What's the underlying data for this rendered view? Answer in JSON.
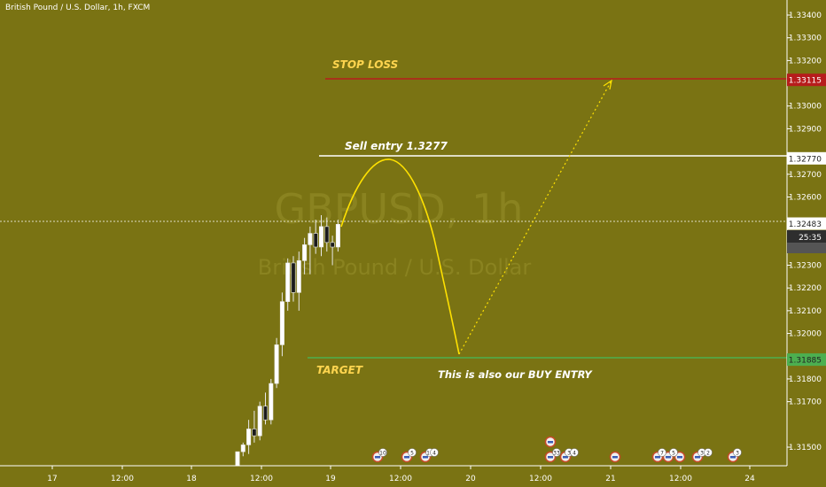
{
  "header": {
    "title": "British Pound / U.S. Dollar, 1h, FXCM"
  },
  "watermark": {
    "symbol": "GBPUSD, 1h",
    "name": "British Pound / U.S. Dollar"
  },
  "colors": {
    "background": "#7a7313",
    "candle_up": "#ffffff",
    "candle_down": "#1a1a1a",
    "stop_loss": "#b71c1c",
    "entry": "#ffffff",
    "target": "#4caf50",
    "annotation_text": "#ffd54f",
    "arc": "#ffe100",
    "last_price_label": "#555555"
  },
  "chart_data": {
    "type": "candlestick",
    "title": "British Pound / U.S. Dollar, 1h, FXCM",
    "x_ticks": [
      "17",
      "12:00",
      "18",
      "12:00",
      "19",
      "12:00",
      "20",
      "12:00",
      "21",
      "12:00",
      "24"
    ],
    "y_ticks": [
      "1.33400",
      "1.33300",
      "1.33200",
      "1.33000",
      "1.32900",
      "1.32700",
      "1.32600",
      "1.32300",
      "1.32200",
      "1.32100",
      "1.32000",
      "1.31800",
      "1.31700",
      "1.31500"
    ],
    "ylim": [
      1.3141,
      1.3344
    ],
    "price_labels": [
      {
        "value": 1.33115,
        "text": "1.33115",
        "role": "stop-loss"
      },
      {
        "value": 1.3277,
        "text": "1.32770",
        "role": "entry"
      },
      {
        "value": 1.32483,
        "text": "1.32483",
        "role": "current"
      },
      {
        "value": 1.31885,
        "text": "1.31885",
        "role": "target"
      }
    ],
    "countdown": "25:35",
    "levels": [
      {
        "name": "STOP LOSS",
        "value": 1.33115
      },
      {
        "name": "Sell entry 1.3277",
        "value": 1.3277
      },
      {
        "name": "TARGET",
        "value": 1.31885
      }
    ],
    "annotations": [
      "STOP LOSS",
      "Sell entry 1.3277",
      "TARGET",
      "This is also our BUY ENTRY"
    ],
    "candles": [
      [
        1.3141,
        1.3148,
        1.3141,
        1.3148
      ],
      [
        1.3148,
        1.3152,
        1.3146,
        1.3151
      ],
      [
        1.3151,
        1.3162,
        1.3147,
        1.3158
      ],
      [
        1.3158,
        1.3166,
        1.3152,
        1.3155
      ],
      [
        1.3155,
        1.317,
        1.3153,
        1.3168
      ],
      [
        1.3168,
        1.3174,
        1.316,
        1.3162
      ],
      [
        1.3162,
        1.318,
        1.316,
        1.3178
      ],
      [
        1.3178,
        1.3198,
        1.3176,
        1.3195
      ],
      [
        1.3195,
        1.3218,
        1.319,
        1.3214
      ],
      [
        1.3214,
        1.3233,
        1.321,
        1.3231
      ],
      [
        1.3231,
        1.3234,
        1.3214,
        1.3218
      ],
      [
        1.3218,
        1.3236,
        1.321,
        1.3232
      ],
      [
        1.3232,
        1.3242,
        1.3226,
        1.3239
      ],
      [
        1.3239,
        1.3247,
        1.3226,
        1.3244
      ],
      [
        1.3244,
        1.325,
        1.3235,
        1.3238
      ],
      [
        1.3238,
        1.3252,
        1.3234,
        1.3247
      ],
      [
        1.3247,
        1.3251,
        1.3236,
        1.324
      ],
      [
        1.324,
        1.3243,
        1.323,
        1.3238
      ],
      [
        1.3238,
        1.325,
        1.3236,
        1.3248
      ]
    ],
    "trade_path": {
      "arc": [
        [
          1.32483,
          1.3277
        ],
        [
          1.3277,
          1.31885
        ]
      ],
      "projection": [
        1.31885,
        1.33115
      ]
    },
    "event_markers": [
      "10",
      "5",
      "16",
      "4",
      "33",
      "3",
      "4",
      "7",
      "5",
      "3",
      "2",
      "3"
    ]
  }
}
